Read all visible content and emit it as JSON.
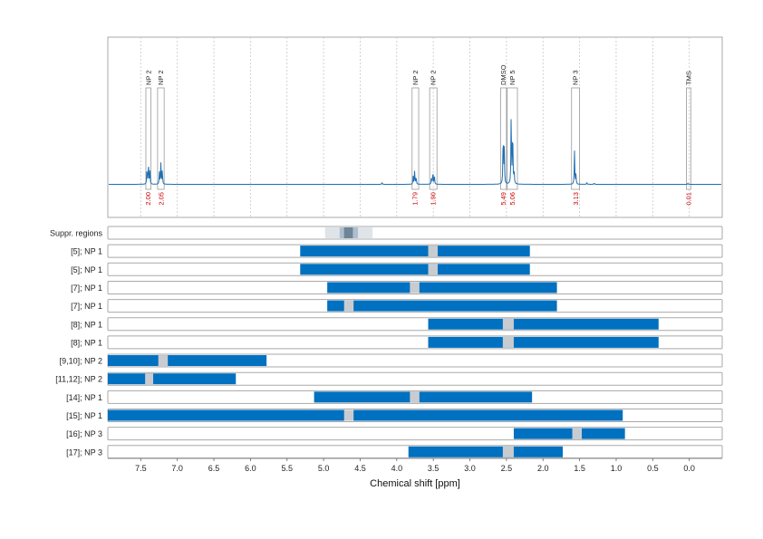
{
  "chart_data": {
    "type": "line",
    "xlabel": "Chemical shift [ppm]",
    "xlim": [
      7.95,
      -0.45
    ],
    "x_ticks": [
      "7.5",
      "7.0",
      "6.5",
      "6.0",
      "5.5",
      "5.0",
      "4.5",
      "4.0",
      "3.5",
      "3.0",
      "2.5",
      "2.0",
      "1.5",
      "1.0",
      "0.5",
      "0.0"
    ],
    "x_tick_values": [
      7.5,
      7.0,
      6.5,
      6.0,
      5.5,
      5.0,
      4.5,
      4.0,
      3.5,
      3.0,
      2.5,
      2.0,
      1.5,
      1.0,
      0.5,
      0.0
    ],
    "spectrum": {
      "color": "#1f6fb4",
      "peaks": [
        {
          "ppm": 7.415,
          "height": 0.16
        },
        {
          "ppm": 7.395,
          "height": 0.23
        },
        {
          "ppm": 7.375,
          "height": 0.14
        },
        {
          "ppm": 7.245,
          "height": 0.13
        },
        {
          "ppm": 7.225,
          "height": 0.21
        },
        {
          "ppm": 7.205,
          "height": 0.15
        },
        {
          "ppm": 3.775,
          "height": 0.08
        },
        {
          "ppm": 3.755,
          "height": 0.14
        },
        {
          "ppm": 3.735,
          "height": 0.08
        },
        {
          "ppm": 3.525,
          "height": 0.07
        },
        {
          "ppm": 3.505,
          "height": 0.14
        },
        {
          "ppm": 3.485,
          "height": 0.08
        },
        {
          "ppm": 2.545,
          "height": 0.55
        },
        {
          "ppm": 2.53,
          "height": 0.35
        },
        {
          "ppm": 2.435,
          "height": 0.75
        },
        {
          "ppm": 2.415,
          "height": 0.6
        },
        {
          "ppm": 2.395,
          "height": 0.12
        },
        {
          "ppm": 1.57,
          "height": 0.34
        },
        {
          "ppm": 1.55,
          "height": 0.1
        },
        {
          "ppm": 4.2,
          "height": 0.02
        },
        {
          "ppm": 1.4,
          "height": 0.02
        },
        {
          "ppm": 1.3,
          "height": 0.015
        },
        {
          "ppm": 0.02,
          "height": 0.01
        }
      ]
    },
    "peak_annotations": [
      {
        "label": "NP 2",
        "from": 7.43,
        "to": 7.36
      },
      {
        "label": "NP 2",
        "from": 7.27,
        "to": 7.18
      },
      {
        "label": "NP 2",
        "from": 3.79,
        "to": 3.7
      },
      {
        "label": "NP 2",
        "from": 3.55,
        "to": 3.45
      },
      {
        "label": "DMSO",
        "from": 2.58,
        "to": 2.5
      },
      {
        "label": "NP 5",
        "from": 2.49,
        "to": 2.35
      },
      {
        "label": "NP 3",
        "from": 1.61,
        "to": 1.5
      },
      {
        "label": "TMS",
        "from": 0.04,
        "to": -0.02
      }
    ],
    "integrals": [
      {
        "value": "2.00",
        "ppm": 7.4
      },
      {
        "value": "2.05",
        "ppm": 7.22
      },
      {
        "value": "1.79",
        "ppm": 3.75
      },
      {
        "value": "1.90",
        "ppm": 3.5
      },
      {
        "value": "5.49",
        "ppm": 2.54
      },
      {
        "value": "5.06",
        "ppm": 2.42
      },
      {
        "value": "3.13",
        "ppm": 1.55
      },
      {
        "value": "0.01",
        "ppm": 0.01
      }
    ],
    "integral_color": "#cc0000",
    "suppression": {
      "label": "Suppr. regions",
      "outer": [
        4.98,
        4.33
      ],
      "middle": [
        4.78,
        4.53
      ],
      "inner": [
        4.72,
        4.6
      ]
    },
    "rows": [
      {
        "label": "[5]; NP 1",
        "range": [
          5.32,
          2.18
        ],
        "gap": [
          3.57,
          3.44
        ]
      },
      {
        "label": "[5]; NP 1",
        "range": [
          5.32,
          2.18
        ],
        "gap": [
          3.57,
          3.44
        ]
      },
      {
        "label": "[7]; NP 1",
        "range": [
          4.95,
          1.81
        ],
        "gap": [
          3.82,
          3.69
        ]
      },
      {
        "label": "[7]; NP 1",
        "range": [
          4.95,
          1.81
        ],
        "gap": [
          4.72,
          4.59
        ]
      },
      {
        "label": "[8]; NP 1",
        "range": [
          3.57,
          0.42
        ],
        "gap": [
          2.55,
          2.4
        ]
      },
      {
        "label": "[8]; NP 1",
        "range": [
          3.57,
          0.42
        ],
        "gap": [
          2.55,
          2.4
        ]
      },
      {
        "label": "[9,10]; NP 2",
        "range": [
          7.95,
          5.78
        ],
        "gap": [
          7.26,
          7.13
        ]
      },
      {
        "label": "[11,12]; NP 2",
        "range": [
          7.95,
          6.2
        ],
        "gap": [
          7.44,
          7.33
        ]
      },
      {
        "label": "[14]; NP 1",
        "range": [
          5.13,
          2.15
        ],
        "gap": [
          3.82,
          3.69
        ]
      },
      {
        "label": "[15]; NP 1",
        "range": [
          7.95,
          0.91
        ],
        "gap": [
          4.72,
          4.59
        ]
      },
      {
        "label": "[16]; NP 3",
        "range": [
          2.4,
          0.88
        ],
        "gap": [
          1.6,
          1.47
        ]
      },
      {
        "label": "[17]; NP 3",
        "range": [
          3.84,
          1.73
        ],
        "gap": [
          2.55,
          2.4
        ]
      }
    ],
    "colors": {
      "bar": "#0070c0",
      "gap": "#c8ccd0",
      "supp_outer": "#dfe4e9",
      "supp_middle": "#aebecd",
      "supp_inner": "#6e8598",
      "frame": "#a9a9a9",
      "grid": "#c8c8c8"
    }
  }
}
